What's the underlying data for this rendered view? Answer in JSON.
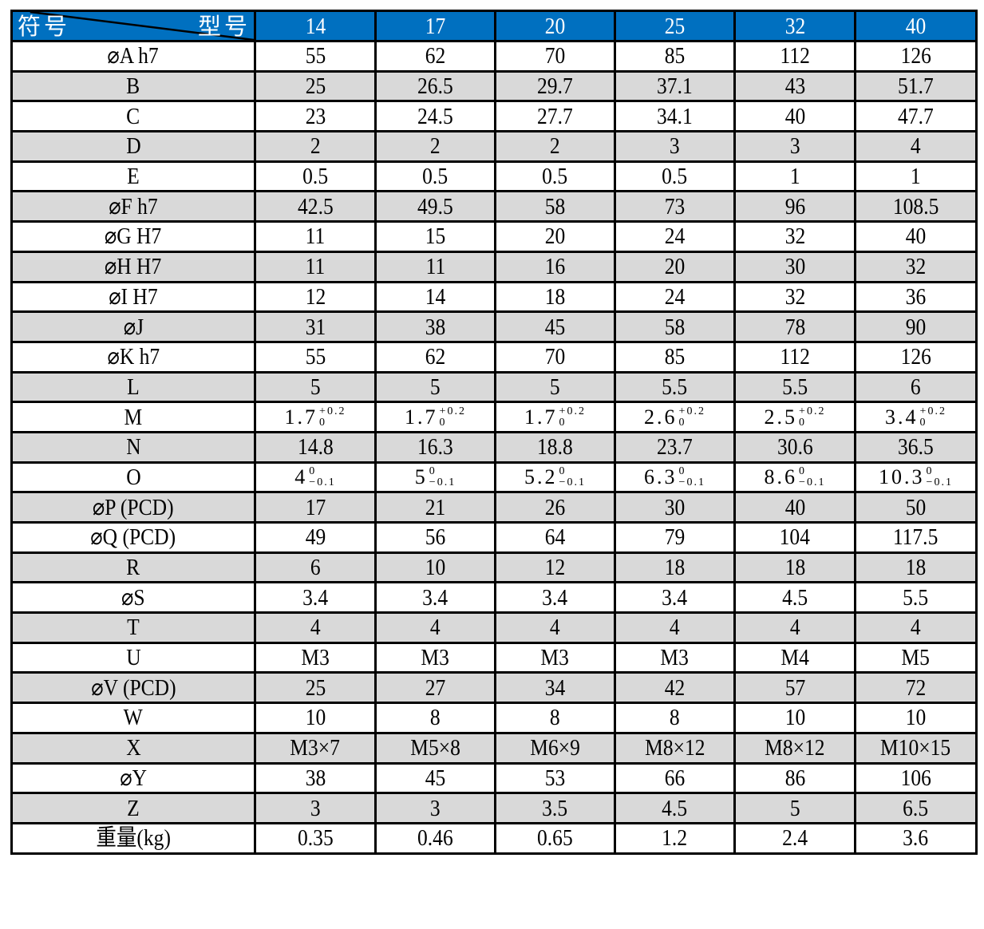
{
  "header": {
    "symbol_label": "符号",
    "model_label": "型号",
    "models": [
      "14",
      "17",
      "20",
      "25",
      "32",
      "40"
    ]
  },
  "colors": {
    "header_bg": "#0070C0",
    "stripe": "#D9D9D9"
  },
  "rows": [
    {
      "label": "⌀A h7",
      "values": [
        "55",
        "62",
        "70",
        "85",
        "112",
        "126"
      ]
    },
    {
      "label": "B",
      "values": [
        "25",
        "26.5",
        "29.7",
        "37.1",
        "43",
        "51.7"
      ]
    },
    {
      "label": "C",
      "values": [
        "23",
        "24.5",
        "27.7",
        "34.1",
        "40",
        "47.7"
      ]
    },
    {
      "label": "D",
      "values": [
        "2",
        "2",
        "2",
        "3",
        "3",
        "4"
      ]
    },
    {
      "label": "E",
      "values": [
        "0.5",
        "0.5",
        "0.5",
        "0.5",
        "1",
        "1"
      ]
    },
    {
      "label": "⌀F h7",
      "values": [
        "42.5",
        "49.5",
        "58",
        "73",
        "96",
        "108.5"
      ]
    },
    {
      "label": "⌀G H7",
      "values": [
        "11",
        "15",
        "20",
        "24",
        "32",
        "40"
      ]
    },
    {
      "label": "⌀H H7",
      "values": [
        "11",
        "11",
        "16",
        "20",
        "30",
        "32"
      ]
    },
    {
      "label": "⌀I H7",
      "values": [
        "12",
        "14",
        "18",
        "24",
        "32",
        "36"
      ]
    },
    {
      "label": "⌀J",
      "values": [
        "31",
        "38",
        "45",
        "58",
        "78",
        "90"
      ]
    },
    {
      "label": "⌀K h7",
      "values": [
        "55",
        "62",
        "70",
        "85",
        "112",
        "126"
      ]
    },
    {
      "label": "L",
      "values": [
        "5",
        "5",
        "5",
        "5.5",
        "5.5",
        "6"
      ]
    },
    {
      "label": "M",
      "values": [
        {
          "base": "1.7",
          "upper": "+0.2",
          "lower": "0"
        },
        {
          "base": "1.7",
          "upper": "+0.2",
          "lower": "0"
        },
        {
          "base": "1.7",
          "upper": "+0.2",
          "lower": "0"
        },
        {
          "base": "2.6",
          "upper": "+0.2",
          "lower": "0"
        },
        {
          "base": "2.5",
          "upper": "+0.2",
          "lower": "0"
        },
        {
          "base": "3.4",
          "upper": "+0.2",
          "lower": "0"
        }
      ]
    },
    {
      "label": "N",
      "values": [
        "14.8",
        "16.3",
        "18.8",
        "23.7",
        "30.6",
        "36.5"
      ]
    },
    {
      "label": "O",
      "values": [
        {
          "base": "4",
          "upper": "0",
          "lower": "−0.1"
        },
        {
          "base": "5",
          "upper": "0",
          "lower": "−0.1"
        },
        {
          "base": "5.2",
          "upper": "0",
          "lower": "−0.1"
        },
        {
          "base": "6.3",
          "upper": "0",
          "lower": "−0.1"
        },
        {
          "base": "8.6",
          "upper": "0",
          "lower": "−0.1"
        },
        {
          "base": "10.3",
          "upper": "0",
          "lower": "−0.1"
        }
      ]
    },
    {
      "label": "⌀P (PCD)",
      "values": [
        "17",
        "21",
        "26",
        "30",
        "40",
        "50"
      ]
    },
    {
      "label": "⌀Q (PCD)",
      "values": [
        "49",
        "56",
        "64",
        "79",
        "104",
        "117.5"
      ]
    },
    {
      "label": "R",
      "values": [
        "6",
        "10",
        "12",
        "18",
        "18",
        "18"
      ]
    },
    {
      "label": "⌀S",
      "values": [
        "3.4",
        "3.4",
        "3.4",
        "3.4",
        "4.5",
        "5.5"
      ]
    },
    {
      "label": "T",
      "values": [
        "4",
        "4",
        "4",
        "4",
        "4",
        "4"
      ]
    },
    {
      "label": "U",
      "values": [
        "M3",
        "M3",
        "M3",
        "M3",
        "M4",
        "M5"
      ]
    },
    {
      "label": "⌀V (PCD)",
      "values": [
        "25",
        "27",
        "34",
        "42",
        "57",
        "72"
      ]
    },
    {
      "label": "W",
      "values": [
        "10",
        "8",
        "8",
        "8",
        "10",
        "10"
      ]
    },
    {
      "label": "X",
      "values": [
        "M3×7",
        "M5×8",
        "M6×9",
        "M8×12",
        "M8×12",
        "M10×15"
      ]
    },
    {
      "label": "⌀Y",
      "values": [
        "38",
        "45",
        "53",
        "66",
        "86",
        "106"
      ]
    },
    {
      "label": "Z",
      "values": [
        "3",
        "3",
        "3.5",
        "4.5",
        "5",
        "6.5"
      ]
    },
    {
      "label": "重量(kg)",
      "values": [
        "0.35",
        "0.46",
        "0.65",
        "1.2",
        "2.4",
        "3.6"
      ]
    }
  ]
}
